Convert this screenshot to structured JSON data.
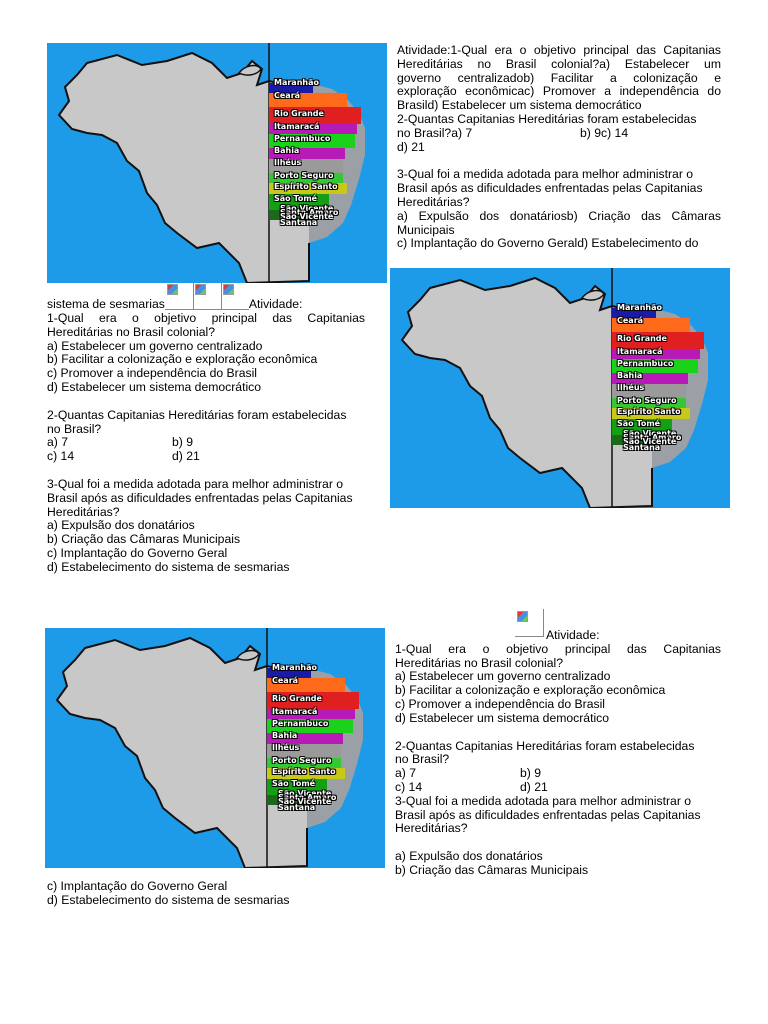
{
  "map": {
    "labels": [
      "Maranhão",
      "Ceará",
      "Rio Grande",
      "Itamaracá",
      "Pernambuco",
      "Bahia",
      "Ilhéus",
      "Porto Seguro",
      "Espírito Santo",
      "São Tomé",
      "São Vicente",
      "Santo Amaro",
      "São Vicente",
      "Santana"
    ],
    "colors": {
      "ocean": "#1e9be8",
      "land": "#c8c8c8",
      "border": "#111111"
    }
  },
  "col1": {
    "line1": "Atividade:1-Qual era o objetivo principal das Capitanias",
    "line2": "Hereditárias no Brasil colonial?a) Estabelecer um",
    "line3": "governo centralizadob) Facilitar a colonização e",
    "line4": "exploração econômicac) Promover a independência do",
    "line5": "Brasild) Estabelecer um sistema democrático",
    "line6": "2-Quantas Capitanias Hereditárias foram estabelecidas",
    "line7a": "no Brasil?a) 7",
    "line7b": "b) 9c) 14",
    "line8": "d) 21",
    "line9": "3-Qual foi a medida adotada para melhor administrar o",
    "line10": "Brasil após as dificuldades enfrentadas pelas Capitanias",
    "line11": "Hereditárias?",
    "line12": "a) Expulsão dos donatáriosb) Criação das Câmaras",
    "line13": "Municipais",
    "line14": "c) Implantação do Governo Gerald) Estabelecimento do"
  },
  "col2": {
    "line1a": "sistema de sesmarias",
    "line1b": "Atividade:",
    "line2": "1-Qual era o objetivo principal das Capitanias",
    "line3": "Hereditárias no Brasil colonial?",
    "line4": "a) Estabelecer um governo centralizado",
    "line5": "b) Facilitar a colonização e exploração econômica",
    "line6": "c) Promover a independência do Brasil",
    "line7": "d) Estabelecer um sistema democrático",
    "line8": "2-Quantas Capitanias Hereditárias foram estabelecidas",
    "line9": "no Brasil?",
    "line10a": "a) 7",
    "line10b": "b) 9",
    "line11a": "c) 14",
    "line11b": "d) 21",
    "line12": "3-Qual foi a medida adotada para melhor administrar o",
    "line13": "Brasil após as dificuldades enfrentadas pelas Capitanias",
    "line14": "Hereditárias?",
    "line15": "a) Expulsão dos donatários",
    "line16": "b) Criação das Câmaras Municipais",
    "line17": "c) Implantação do Governo Geral",
    "line18": "d) Estabelecimento do sistema de sesmarias"
  },
  "col3": {
    "line1": "Atividade:",
    "line2": "1-Qual era o objetivo principal das Capitanias",
    "line3": "Hereditárias no Brasil colonial?",
    "line4": "a) Estabelecer um governo centralizado",
    "line5": "b) Facilitar a colonização e exploração econômica",
    "line6": "c) Promover a independência do Brasil",
    "line7": "d) Estabelecer um sistema democrático",
    "line8": "2-Quantas Capitanias Hereditárias foram estabelecidas",
    "line9": "no Brasil?",
    "line10a": "a) 7",
    "line10b": "b) 9",
    "line11a": "c) 14",
    "line11b": "d) 21",
    "line12": "3-Qual foi a medida adotada para melhor administrar o",
    "line13": "Brasil após as dificuldades enfrentadas pelas Capitanias",
    "line14": "Hereditárias?",
    "line15": "a) Expulsão dos donatários",
    "line16": "b) Criação das Câmaras Municipais"
  },
  "col4": {
    "line1": "c) Implantação do Governo Geral",
    "line2": "d) Estabelecimento do sistema de sesmarias"
  }
}
